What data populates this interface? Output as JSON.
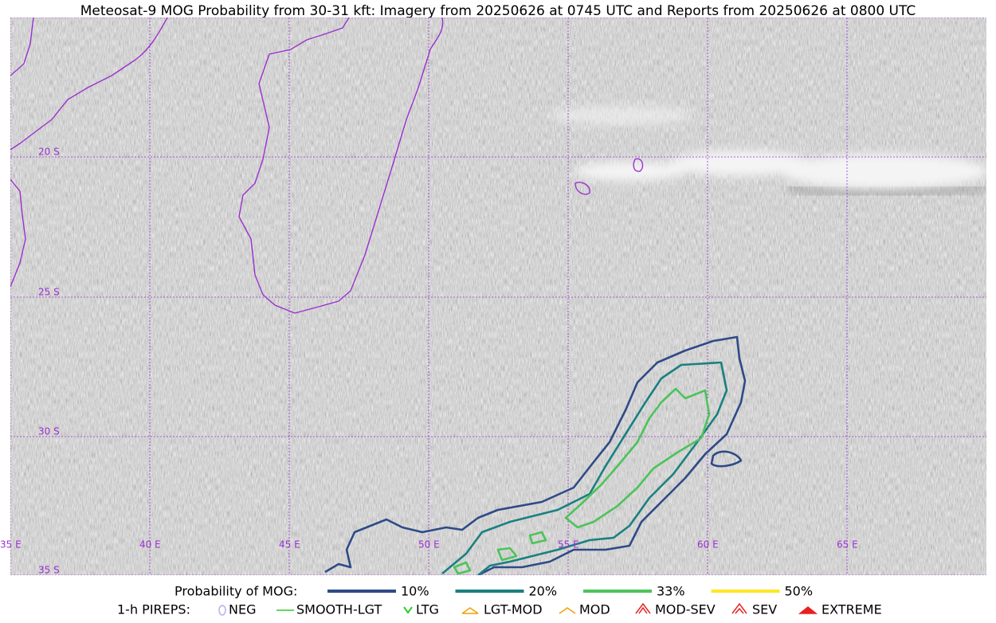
{
  "header": {
    "title": "Meteosat-9 MOG Probability from 30-31 kft: Imagery from 20250626 at 0745 UTC and Reports from 20250626 at 0800 UTC"
  },
  "map": {
    "lat_labels": [
      "20 S",
      "25 S",
      "30 S",
      "35 S"
    ],
    "lon_labels": [
      "35 E",
      "40 E",
      "45 E",
      "50 E",
      "55 E",
      "60 E",
      "65 E"
    ]
  },
  "legend": {
    "mog": {
      "title": "Probability of MOG:",
      "items": [
        {
          "label": "10%",
          "color": "#2e4a87"
        },
        {
          "label": "20%",
          "color": "#1a8080"
        },
        {
          "label": "33%",
          "color": "#4cc35a"
        },
        {
          "label": "50%",
          "color": "#fde725"
        }
      ]
    },
    "pireps": {
      "title": "1-h PIREPS:",
      "items": [
        "NEG",
        "SMOOTH-LGT",
        "LTG",
        "LGT-MOD",
        "MOD",
        "MOD-SEV",
        "SEV",
        "EXTREME"
      ]
    }
  }
}
